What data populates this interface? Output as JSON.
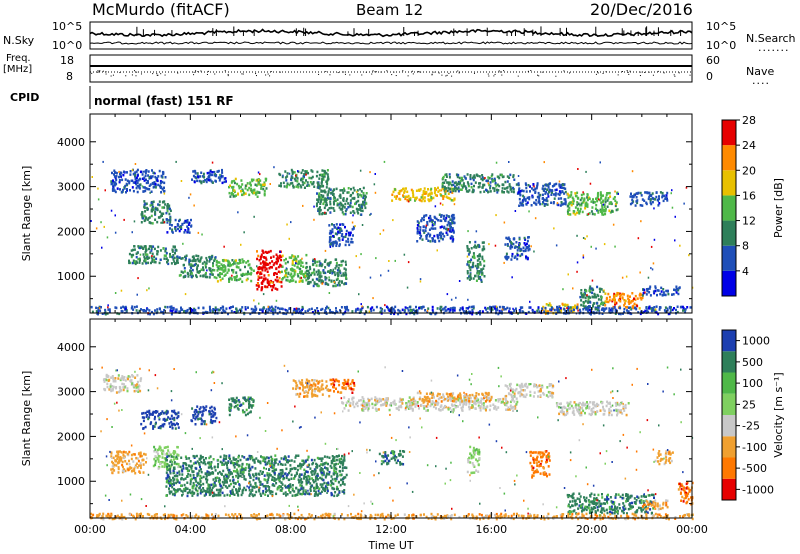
{
  "header": {
    "station": "McMurdo (fitACF)",
    "beam": "Beam 12",
    "date": "20/Dec/2016"
  },
  "top_panels": {
    "nsky_label": "N.Sky",
    "nsky_ticks": [
      "10^5",
      "10^0"
    ],
    "nsearch_label": "N.Search",
    "nsearch_ticks": [
      "10^5",
      "10^0"
    ],
    "freq_label_line1": "Freq.",
    "freq_label_line2": "[MHz]",
    "freq_ticks": [
      "18",
      "8"
    ],
    "nave_label": "Nave",
    "nave_ticks": [
      "60",
      "0"
    ],
    "cpid_label": "CPID",
    "cpid_text": "normal (fast) 151 RF"
  },
  "chart_data": [
    {
      "type": "heatmap",
      "name": "power-panel",
      "ylabel": "Slant Range [km]",
      "xlabel": "Time UT",
      "x_ticks": [
        "00:00",
        "04:00",
        "08:00",
        "12:00",
        "16:00",
        "20:00",
        "00:00"
      ],
      "x_range_hours": [
        0,
        24
      ],
      "y_ticks": [
        "1000",
        "2000",
        "3000",
        "4000"
      ],
      "y_range_km": [
        180,
        4620
      ],
      "colorbar_label": "Power [dB]",
      "colorbar_ticks": [
        "4",
        "8",
        "12",
        "16",
        "20",
        "24",
        "28"
      ],
      "colorbar_colors": [
        "#0000e6",
        "#1f4fb8",
        "#2e7f5a",
        "#4fb848",
        "#e8c000",
        "#ff8a00",
        "#e60000"
      ],
      "regions": [
        {
          "t0": 0.8,
          "t1": 3.0,
          "r0": 2900,
          "r1": 3400,
          "level": 1
        },
        {
          "t0": 2.0,
          "t1": 3.2,
          "r0": 2200,
          "r1": 2700,
          "level": 2
        },
        {
          "t0": 4.0,
          "t1": 5.5,
          "r0": 3100,
          "r1": 3400,
          "level": 1
        },
        {
          "t0": 5.5,
          "t1": 7.0,
          "r0": 2800,
          "r1": 3200,
          "level": 3
        },
        {
          "t0": 7.5,
          "t1": 9.5,
          "r0": 3000,
          "r1": 3400,
          "level": 2
        },
        {
          "t0": 9.0,
          "t1": 11.0,
          "r0": 2400,
          "r1": 3000,
          "level": 2
        },
        {
          "t0": 12.0,
          "t1": 14.5,
          "r0": 2700,
          "r1": 3000,
          "level": 4
        },
        {
          "t0": 14.0,
          "t1": 17.0,
          "r0": 2900,
          "r1": 3300,
          "level": 2
        },
        {
          "t0": 17.0,
          "t1": 19.0,
          "r0": 2600,
          "r1": 3100,
          "level": 1
        },
        {
          "t0": 19.0,
          "t1": 21.0,
          "r0": 2400,
          "r1": 2900,
          "level": 3
        },
        {
          "t0": 21.5,
          "t1": 23.0,
          "r0": 2600,
          "r1": 2900,
          "level": 1
        },
        {
          "t0": 1.5,
          "t1": 3.5,
          "r0": 1300,
          "r1": 1700,
          "level": 2
        },
        {
          "t0": 3.5,
          "t1": 5.0,
          "r0": 1000,
          "r1": 1500,
          "level": 2
        },
        {
          "t0": 5.0,
          "t1": 6.5,
          "r0": 900,
          "r1": 1400,
          "level": 3
        },
        {
          "t0": 6.6,
          "t1": 7.6,
          "r0": 700,
          "r1": 1600,
          "level": 6
        },
        {
          "t0": 7.6,
          "t1": 8.6,
          "r0": 900,
          "r1": 1500,
          "level": 3
        },
        {
          "t0": 8.6,
          "t1": 10.2,
          "r0": 800,
          "r1": 1400,
          "level": 2
        },
        {
          "t0": 3.0,
          "t1": 4.0,
          "r0": 2000,
          "r1": 2300,
          "level": 1
        },
        {
          "t0": 9.5,
          "t1": 10.5,
          "r0": 1700,
          "r1": 2200,
          "level": 1
        },
        {
          "t0": 13.0,
          "t1": 14.5,
          "r0": 1800,
          "r1": 2400,
          "level": 1
        },
        {
          "t0": 15.0,
          "t1": 15.7,
          "r0": 900,
          "r1": 1800,
          "level": 2
        },
        {
          "t0": 16.5,
          "t1": 17.5,
          "r0": 1400,
          "r1": 1900,
          "level": 1
        },
        {
          "t0": 18.0,
          "t1": 19.5,
          "r0": 200,
          "r1": 420,
          "level": 4
        },
        {
          "t0": 19.5,
          "t1": 20.5,
          "r0": 300,
          "r1": 800,
          "level": 2
        },
        {
          "t0": 20.5,
          "t1": 22.0,
          "r0": 300,
          "r1": 650,
          "level": 5
        },
        {
          "t0": 22.0,
          "t1": 23.5,
          "r0": 600,
          "r1": 800,
          "level": 1
        },
        {
          "t0": 0.0,
          "t1": 24.0,
          "r0": 180,
          "r1": 350,
          "level": 1
        }
      ]
    },
    {
      "type": "heatmap",
      "name": "velocity-panel",
      "ylabel": "Slant Range [km]",
      "xlabel": "Time UT",
      "x_ticks": [
        "00:00",
        "04:00",
        "08:00",
        "12:00",
        "16:00",
        "20:00",
        "00:00"
      ],
      "x_range_hours": [
        0,
        24
      ],
      "y_ticks": [
        "1000",
        "2000",
        "3000",
        "4000"
      ],
      "y_range_km": [
        180,
        4620
      ],
      "colorbar_label": "Velocity [m s⁻¹]",
      "colorbar_ticks": [
        "1000",
        "500",
        "100",
        "25",
        "-25",
        "-100",
        "-500",
        "-1000"
      ],
      "colorbar_colors": [
        "#1c3fb0",
        "#2e7f5a",
        "#4fb848",
        "#7fd060",
        "#c8c8c8",
        "#f0a030",
        "#ff7800",
        "#e60000"
      ],
      "regions": [
        {
          "t0": 0.5,
          "t1": 2.0,
          "r0": 3000,
          "r1": 3400,
          "level": 4
        },
        {
          "t0": 2.0,
          "t1": 3.5,
          "r0": 2200,
          "r1": 2600,
          "level": 0
        },
        {
          "t0": 4.0,
          "t1": 5.0,
          "r0": 2300,
          "r1": 2700,
          "level": 0
        },
        {
          "t0": 5.5,
          "t1": 6.5,
          "r0": 2500,
          "r1": 2900,
          "level": 1
        },
        {
          "t0": 8.0,
          "t1": 9.5,
          "r0": 2900,
          "r1": 3300,
          "level": 5
        },
        {
          "t0": 9.5,
          "t1": 10.5,
          "r0": 3000,
          "r1": 3300,
          "level": 6
        },
        {
          "t0": 10.0,
          "t1": 17.0,
          "r0": 2600,
          "r1": 2900,
          "level": 4
        },
        {
          "t0": 13.0,
          "t1": 16.0,
          "r0": 2800,
          "r1": 3000,
          "level": 5
        },
        {
          "t0": 16.5,
          "t1": 18.5,
          "r0": 2900,
          "r1": 3200,
          "level": 4
        },
        {
          "t0": 18.5,
          "t1": 21.5,
          "r0": 2500,
          "r1": 2800,
          "level": 4
        },
        {
          "t0": 0.8,
          "t1": 2.2,
          "r0": 1200,
          "r1": 1700,
          "level": 5
        },
        {
          "t0": 2.5,
          "t1": 3.5,
          "r0": 1300,
          "r1": 1800,
          "level": 3
        },
        {
          "t0": 3.0,
          "t1": 10.2,
          "r0": 700,
          "r1": 1600,
          "level": 1
        },
        {
          "t0": 11.5,
          "t1": 12.5,
          "r0": 1400,
          "r1": 1700,
          "level": 1
        },
        {
          "t0": 15.0,
          "t1": 15.5,
          "r0": 1200,
          "r1": 1800,
          "level": 3
        },
        {
          "t0": 17.5,
          "t1": 18.3,
          "r0": 1100,
          "r1": 1700,
          "level": 6
        },
        {
          "t0": 22.5,
          "t1": 23.2,
          "r0": 1400,
          "r1": 1700,
          "level": 5
        },
        {
          "t0": 19.0,
          "t1": 22.5,
          "r0": 300,
          "r1": 750,
          "level": 1
        },
        {
          "t0": 22.0,
          "t1": 23.0,
          "r0": 400,
          "r1": 600,
          "level": 5
        },
        {
          "t0": 23.4,
          "t1": 24.0,
          "r0": 500,
          "r1": 1000,
          "level": 6
        },
        {
          "t0": 0.0,
          "t1": 24.0,
          "r0": 180,
          "r1": 300,
          "level": 5
        }
      ]
    }
  ]
}
